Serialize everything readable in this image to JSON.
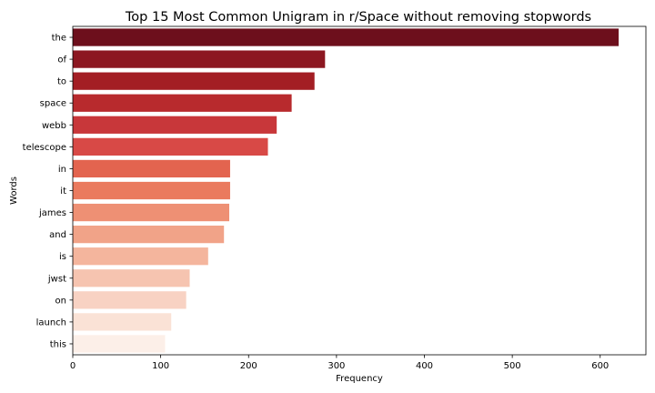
{
  "chart_data": {
    "type": "bar",
    "orientation": "horizontal",
    "title": "Top 15 Most Common Unigram in r/Space without removing stopwords",
    "xlabel": "Frequency",
    "ylabel": "Words",
    "xlim": [
      0,
      652
    ],
    "xticks": [
      "0",
      "100",
      "200",
      "300",
      "400",
      "500",
      "600"
    ],
    "categories": [
      "the",
      "of",
      "to",
      "space",
      "webb",
      "telescope",
      "in",
      "it",
      "james",
      "and",
      "is",
      "jwst",
      "on",
      "launch",
      "this"
    ],
    "values": [
      621,
      287,
      275,
      249,
      232,
      222,
      179,
      179,
      178,
      172,
      154,
      133,
      129,
      112,
      105
    ],
    "colors": [
      "#6d0f1c",
      "#8c1721",
      "#a31e24",
      "#b82a2d",
      "#c8373a",
      "#d84946",
      "#e3644f",
      "#ea7a5e",
      "#ee9074",
      "#f1a388",
      "#f4b59d",
      "#f6c4b0",
      "#f8d2c3",
      "#fae2d6",
      "#fcefe8"
    ],
    "grid": false,
    "legend": "none"
  }
}
